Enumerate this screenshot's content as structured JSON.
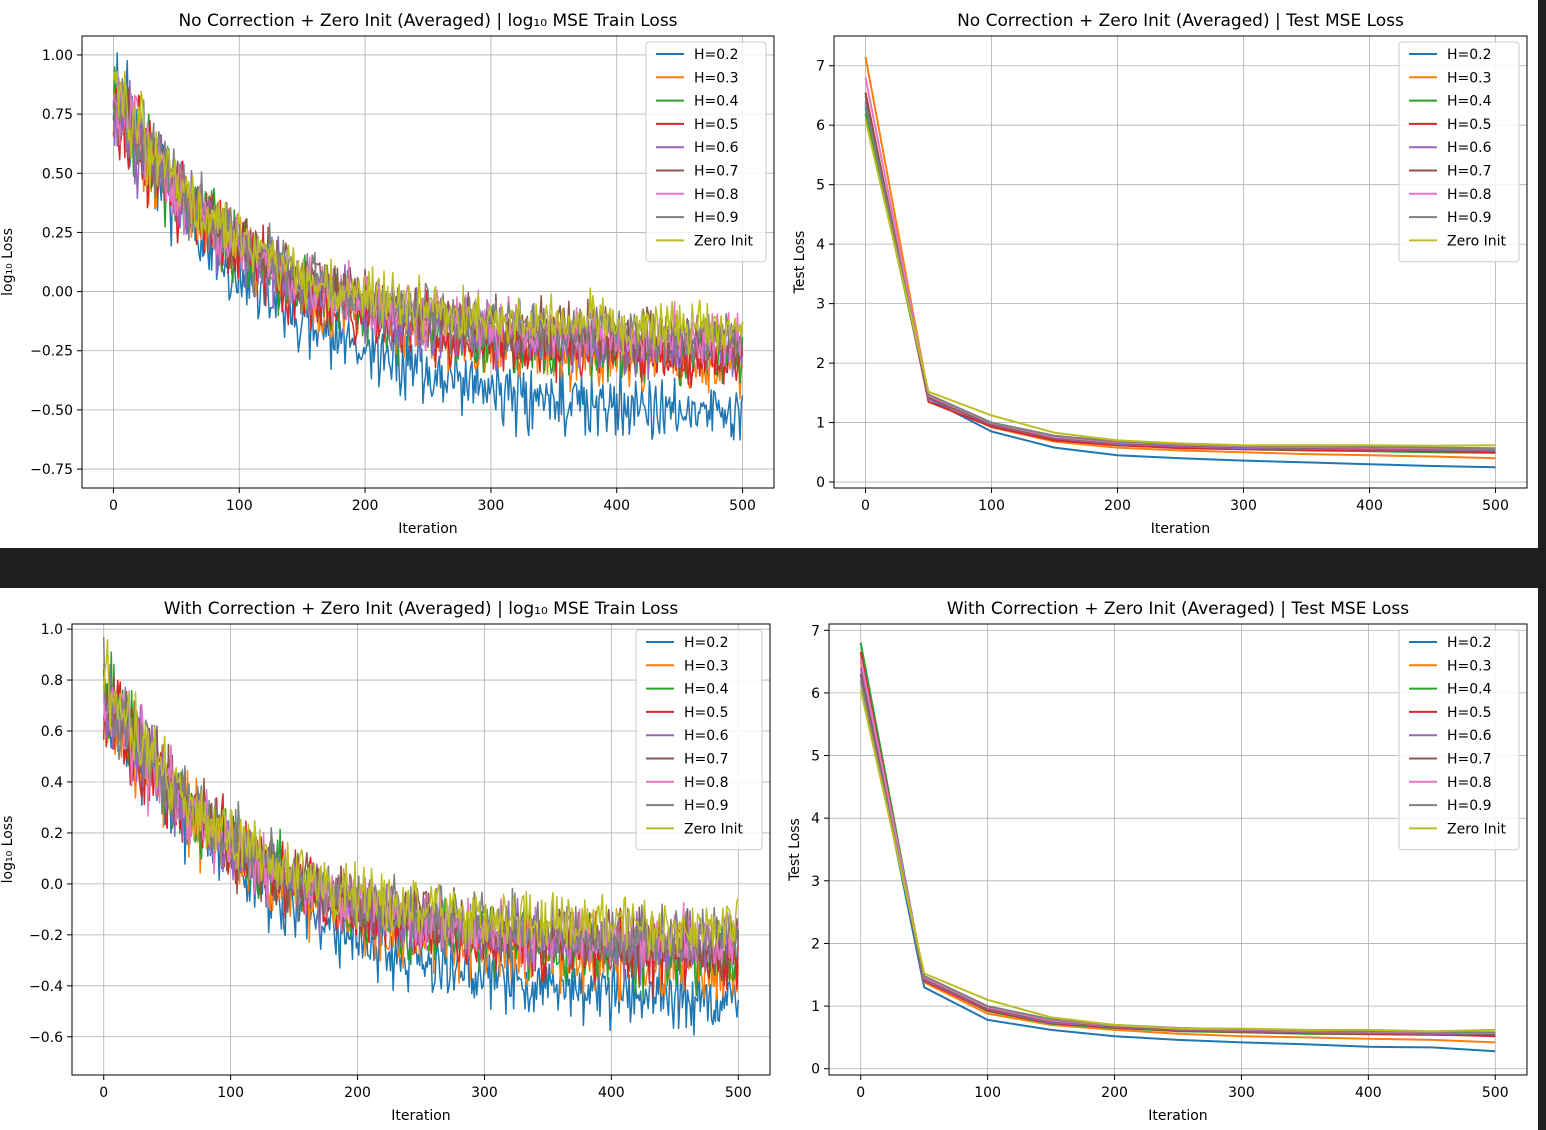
{
  "colors": {
    "background": "#1f1f1f",
    "figure": "#ffffff",
    "grid": "#b0b0b0",
    "legend_border": "#cccccc"
  },
  "legend_entries": [
    "H=0.2",
    "H=0.3",
    "H=0.4",
    "H=0.5",
    "H=0.6",
    "H=0.7",
    "H=0.8",
    "H=0.9",
    "Zero Init"
  ],
  "chart_data": [
    {
      "type": "line",
      "title": "No Correction + Zero Init (Averaged) | log₁₀ MSE Train Loss",
      "xlabel": "Iteration",
      "ylabel": "log₁₀ Loss",
      "xlim": [
        -25,
        525
      ],
      "ylim": [
        -0.83,
        1.08
      ],
      "xticks": [
        0,
        100,
        200,
        300,
        400,
        500
      ],
      "yticks": [
        -0.75,
        -0.5,
        -0.25,
        0.0,
        0.25,
        0.5,
        0.75,
        1.0
      ],
      "ytick_labels": [
        "−0.75",
        "−0.50",
        "−0.25",
        "0.00",
        "0.25",
        "0.50",
        "0.75",
        "1.00"
      ],
      "grid": true,
      "legend": "top-right",
      "noise": true,
      "x": [
        0,
        500
      ],
      "series": [
        {
          "name": "H=0.2",
          "color": "#1f77b4",
          "start": 0.8,
          "end": -0.55,
          "tau": 130,
          "amp": 0.1,
          "seed": 11
        },
        {
          "name": "H=0.3",
          "color": "#ff7f0e",
          "start": 0.78,
          "end": -0.33,
          "tau": 125,
          "amp": 0.09,
          "seed": 23
        },
        {
          "name": "H=0.4",
          "color": "#2ca02c",
          "start": 0.8,
          "end": -0.29,
          "tau": 120,
          "amp": 0.09,
          "seed": 37
        },
        {
          "name": "H=0.5",
          "color": "#d62728",
          "start": 0.78,
          "end": -0.3,
          "tau": 120,
          "amp": 0.09,
          "seed": 41
        },
        {
          "name": "H=0.6",
          "color": "#9467bd",
          "start": 0.79,
          "end": -0.25,
          "tau": 115,
          "amp": 0.09,
          "seed": 53
        },
        {
          "name": "H=0.7",
          "color": "#8c564b",
          "start": 0.8,
          "end": -0.22,
          "tau": 115,
          "amp": 0.08,
          "seed": 67
        },
        {
          "name": "H=0.8",
          "color": "#e377c2",
          "start": 0.81,
          "end": -0.21,
          "tau": 110,
          "amp": 0.08,
          "seed": 71
        },
        {
          "name": "H=0.9",
          "color": "#7f7f7f",
          "start": 0.82,
          "end": -0.2,
          "tau": 110,
          "amp": 0.08,
          "seed": 83
        },
        {
          "name": "Zero Init",
          "color": "#bcbd22",
          "start": 0.84,
          "end": -0.17,
          "tau": 105,
          "amp": 0.08,
          "seed": 97
        }
      ]
    },
    {
      "type": "line",
      "title": "No Correction + Zero Init (Averaged) | Test MSE Loss",
      "xlabel": "Iteration",
      "ylabel": "Test Loss",
      "xlim": [
        -25,
        525
      ],
      "ylim": [
        -0.1,
        7.5
      ],
      "xticks": [
        0,
        100,
        200,
        300,
        400,
        500
      ],
      "yticks": [
        0,
        1,
        2,
        3,
        4,
        5,
        6,
        7
      ],
      "ytick_labels": [
        "0",
        "1",
        "2",
        "3",
        "4",
        "5",
        "6",
        "7"
      ],
      "grid": true,
      "legend": "top-right",
      "noise": false,
      "x": [
        0,
        50,
        100,
        150,
        200,
        250,
        300,
        350,
        400,
        450,
        500
      ],
      "series": [
        {
          "name": "H=0.2",
          "color": "#1f77b4",
          "values": [
            6.3,
            1.4,
            0.85,
            0.58,
            0.45,
            0.4,
            0.36,
            0.33,
            0.3,
            0.27,
            0.25
          ]
        },
        {
          "name": "H=0.3",
          "color": "#ff7f0e",
          "values": [
            7.15,
            1.45,
            0.92,
            0.68,
            0.58,
            0.53,
            0.5,
            0.47,
            0.45,
            0.43,
            0.4
          ]
        },
        {
          "name": "H=0.4",
          "color": "#2ca02c",
          "values": [
            6.2,
            1.42,
            0.95,
            0.72,
            0.62,
            0.58,
            0.55,
            0.53,
            0.52,
            0.5,
            0.49
          ]
        },
        {
          "name": "H=0.5",
          "color": "#d62728",
          "values": [
            6.55,
            1.35,
            0.93,
            0.7,
            0.62,
            0.57,
            0.55,
            0.54,
            0.53,
            0.52,
            0.5
          ]
        },
        {
          "name": "H=0.6",
          "color": "#9467bd",
          "values": [
            6.4,
            1.4,
            0.96,
            0.74,
            0.64,
            0.6,
            0.57,
            0.56,
            0.55,
            0.54,
            0.53
          ]
        },
        {
          "name": "H=0.7",
          "color": "#8c564b",
          "values": [
            6.5,
            1.42,
            0.97,
            0.75,
            0.66,
            0.62,
            0.59,
            0.58,
            0.57,
            0.56,
            0.55
          ]
        },
        {
          "name": "H=0.8",
          "color": "#e377c2",
          "values": [
            6.8,
            1.45,
            0.99,
            0.76,
            0.67,
            0.63,
            0.6,
            0.59,
            0.58,
            0.57,
            0.56
          ]
        },
        {
          "name": "H=0.9",
          "color": "#7f7f7f",
          "values": [
            6.35,
            1.47,
            1.0,
            0.78,
            0.68,
            0.64,
            0.61,
            0.6,
            0.59,
            0.58,
            0.57
          ]
        },
        {
          "name": "Zero Init",
          "color": "#bcbd22",
          "values": [
            6.1,
            1.52,
            1.12,
            0.83,
            0.7,
            0.65,
            0.62,
            0.62,
            0.62,
            0.61,
            0.62
          ]
        }
      ]
    },
    {
      "type": "line",
      "title": "With Correction + Zero Init (Averaged) | log₁₀ MSE Train Loss",
      "xlabel": "Iteration",
      "ylabel": "log₁₀ Loss",
      "xlim": [
        -25,
        525
      ],
      "ylim": [
        -0.75,
        1.02
      ],
      "xticks": [
        0,
        100,
        200,
        300,
        400,
        500
      ],
      "yticks": [
        -0.6,
        -0.4,
        -0.2,
        0.0,
        0.2,
        0.4,
        0.6,
        0.8,
        1.0
      ],
      "ytick_labels": [
        "−0.6",
        "−0.4",
        "−0.2",
        "0.0",
        "0.2",
        "0.4",
        "0.6",
        "0.8",
        "1.0"
      ],
      "grid": true,
      "legend": "top-right",
      "noise": true,
      "x": [
        0,
        500
      ],
      "series": [
        {
          "name": "H=0.2",
          "color": "#1f77b4",
          "start": 0.75,
          "end": -0.48,
          "tau": 130,
          "amp": 0.09,
          "seed": 13
        },
        {
          "name": "H=0.3",
          "color": "#ff7f0e",
          "start": 0.72,
          "end": -0.35,
          "tau": 125,
          "amp": 0.09,
          "seed": 29
        },
        {
          "name": "H=0.4",
          "color": "#2ca02c",
          "start": 0.74,
          "end": -0.3,
          "tau": 120,
          "amp": 0.09,
          "seed": 31
        },
        {
          "name": "H=0.5",
          "color": "#d62728",
          "start": 0.73,
          "end": -0.3,
          "tau": 120,
          "amp": 0.09,
          "seed": 43
        },
        {
          "name": "H=0.6",
          "color": "#9467bd",
          "start": 0.73,
          "end": -0.27,
          "tau": 115,
          "amp": 0.08,
          "seed": 59
        },
        {
          "name": "H=0.7",
          "color": "#8c564b",
          "start": 0.74,
          "end": -0.25,
          "tau": 115,
          "amp": 0.08,
          "seed": 61
        },
        {
          "name": "H=0.8",
          "color": "#e377c2",
          "start": 0.75,
          "end": -0.24,
          "tau": 110,
          "amp": 0.08,
          "seed": 73
        },
        {
          "name": "H=0.9",
          "color": "#7f7f7f",
          "start": 0.76,
          "end": -0.22,
          "tau": 110,
          "amp": 0.08,
          "seed": 89
        },
        {
          "name": "Zero Init",
          "color": "#bcbd22",
          "start": 0.78,
          "end": -0.18,
          "tau": 105,
          "amp": 0.08,
          "seed": 101
        }
      ]
    },
    {
      "type": "line",
      "title": "With Correction + Zero Init (Averaged) | Test MSE Loss",
      "xlabel": "Iteration",
      "ylabel": "Test Loss",
      "xlim": [
        -25,
        525
      ],
      "ylim": [
        -0.1,
        7.1
      ],
      "xticks": [
        0,
        100,
        200,
        300,
        400,
        500
      ],
      "yticks": [
        0,
        1,
        2,
        3,
        4,
        5,
        6,
        7
      ],
      "ytick_labels": [
        "0",
        "1",
        "2",
        "3",
        "4",
        "5",
        "6",
        "7"
      ],
      "grid": true,
      "legend": "top-right",
      "noise": false,
      "x": [
        0,
        50,
        100,
        150,
        200,
        250,
        300,
        350,
        400,
        450,
        500
      ],
      "series": [
        {
          "name": "H=0.2",
          "color": "#1f77b4",
          "values": [
            6.3,
            1.3,
            0.78,
            0.62,
            0.52,
            0.46,
            0.42,
            0.39,
            0.35,
            0.34,
            0.28
          ]
        },
        {
          "name": "H=0.3",
          "color": "#ff7f0e",
          "values": [
            6.5,
            1.38,
            0.88,
            0.7,
            0.62,
            0.56,
            0.52,
            0.5,
            0.48,
            0.46,
            0.42
          ]
        },
        {
          "name": "H=0.4",
          "color": "#2ca02c",
          "values": [
            6.8,
            1.42,
            0.92,
            0.72,
            0.65,
            0.6,
            0.58,
            0.56,
            0.55,
            0.54,
            0.53
          ]
        },
        {
          "name": "H=0.5",
          "color": "#d62728",
          "values": [
            6.65,
            1.4,
            0.93,
            0.73,
            0.66,
            0.61,
            0.59,
            0.57,
            0.56,
            0.55,
            0.52
          ]
        },
        {
          "name": "H=0.6",
          "color": "#9467bd",
          "values": [
            6.4,
            1.42,
            0.95,
            0.74,
            0.67,
            0.62,
            0.6,
            0.58,
            0.57,
            0.56,
            0.55
          ]
        },
        {
          "name": "H=0.7",
          "color": "#8c564b",
          "values": [
            6.3,
            1.44,
            0.96,
            0.76,
            0.68,
            0.63,
            0.61,
            0.59,
            0.58,
            0.57,
            0.56
          ]
        },
        {
          "name": "H=0.8",
          "color": "#e377c2",
          "values": [
            6.55,
            1.46,
            0.98,
            0.77,
            0.69,
            0.64,
            0.62,
            0.6,
            0.59,
            0.58,
            0.57
          ]
        },
        {
          "name": "H=0.9",
          "color": "#7f7f7f",
          "values": [
            6.2,
            1.48,
            1.0,
            0.79,
            0.7,
            0.65,
            0.63,
            0.61,
            0.6,
            0.59,
            0.58
          ]
        },
        {
          "name": "Zero Init",
          "color": "#bcbd22",
          "values": [
            6.05,
            1.52,
            1.1,
            0.82,
            0.7,
            0.64,
            0.64,
            0.62,
            0.62,
            0.6,
            0.62
          ]
        }
      ]
    }
  ]
}
